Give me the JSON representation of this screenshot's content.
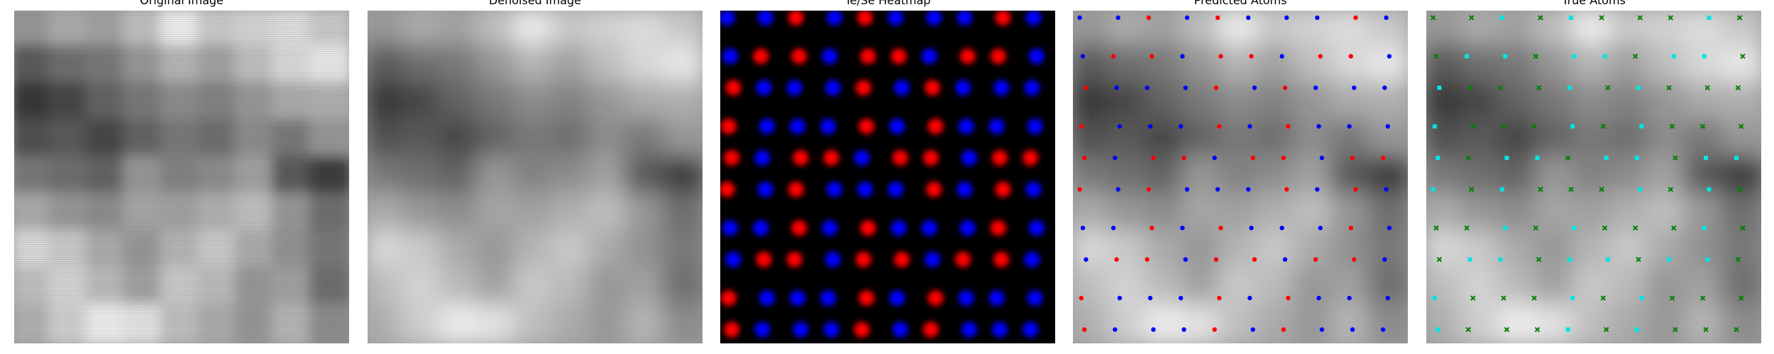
{
  "figure": {
    "panels": [
      {
        "key": "original",
        "title": "Original Image"
      },
      {
        "key": "denoised",
        "title": "Denoised Image"
      },
      {
        "key": "heatmap",
        "title": "Te/Se Heatmap"
      },
      {
        "key": "predicted",
        "title": "Predicted Atoms"
      },
      {
        "key": "true",
        "title": "True Atoms"
      }
    ],
    "colors": {
      "background": "#ffffff",
      "heat_background": "#000000",
      "te_color": "#ff0000",
      "se_color": "#0000ff",
      "pred_te": "#ff0000",
      "pred_se": "#0000ff",
      "true_a": "#00e5e5",
      "true_b": "#008000"
    },
    "marker_names": {
      "predicted": "dot-marker",
      "true_a": "square-marker",
      "true_b": "x-marker"
    }
  }
}
